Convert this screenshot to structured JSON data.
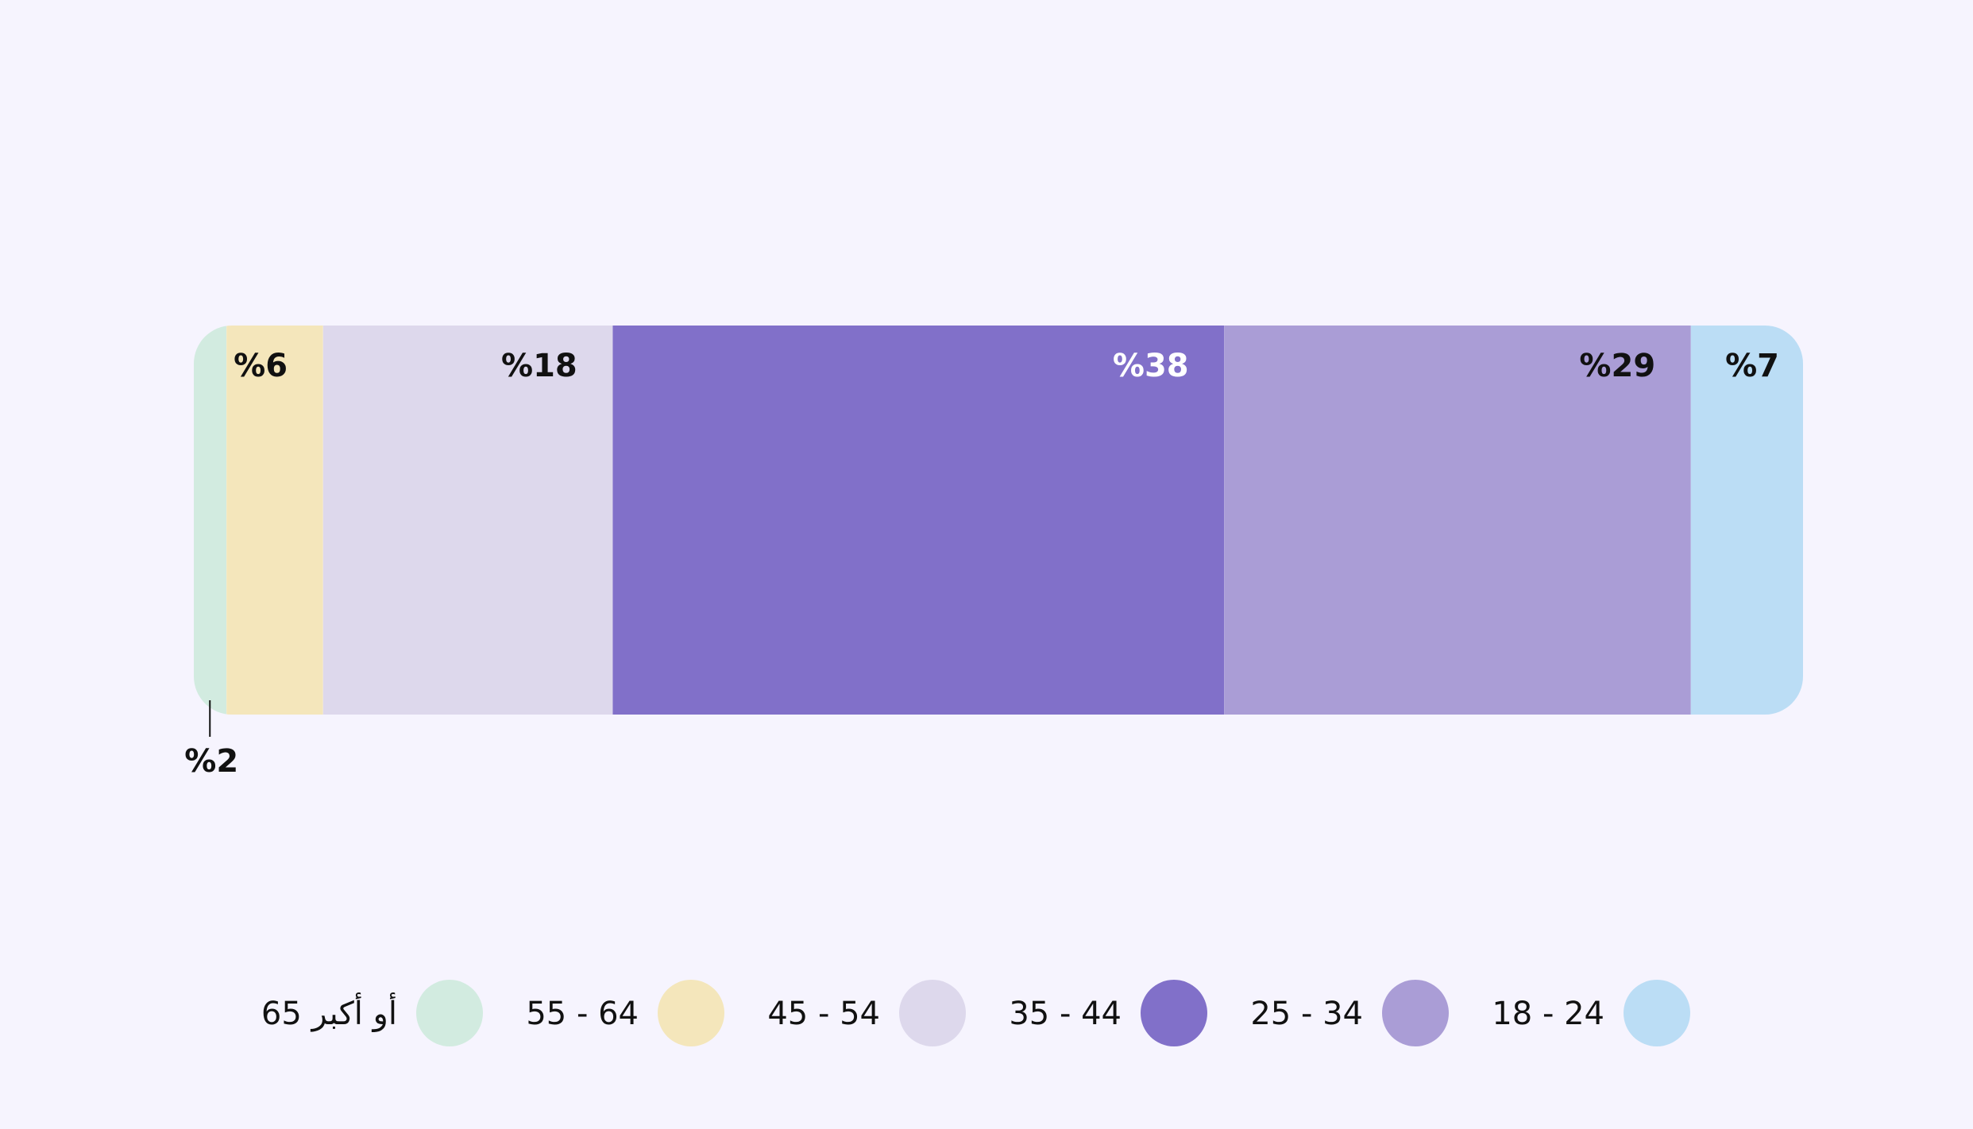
{
  "chart_data": {
    "type": "bar",
    "orientation": "horizontal-stacked-100",
    "direction": "right-to-left",
    "title": "",
    "xlabel": "",
    "ylabel": "",
    "value_format": "%{value}",
    "segments": [
      {
        "category": "18 - 24",
        "value": 7,
        "label": "%7",
        "color": "#bbddf5",
        "label_color": "#111111"
      },
      {
        "category": "25 - 34",
        "value": 29,
        "label": "%29",
        "color": "#aa9dd6",
        "label_color": "#111111"
      },
      {
        "category": "35 - 44",
        "value": 38,
        "label": "%38",
        "color": "#8170c9",
        "label_color": "#ffffff"
      },
      {
        "category": "45 - 54",
        "value": 18,
        "label": "%18",
        "color": "#ddd8ec",
        "label_color": "#111111"
      },
      {
        "category": "55 - 64",
        "value": 6,
        "label": "%6",
        "color": "#f4e6bb",
        "label_color": "#111111"
      },
      {
        "category": "65 أو أكبر",
        "value": 2,
        "label": "%2",
        "color": "#d2ebe0",
        "label_color": "#111111",
        "label_outside": true
      }
    ],
    "legend": {
      "position": "bottom",
      "items": [
        "18 - 24",
        "25 - 34",
        "35 - 44",
        "45 - 54",
        "55 - 64",
        "65 أو أكبر"
      ]
    },
    "grid": false
  }
}
